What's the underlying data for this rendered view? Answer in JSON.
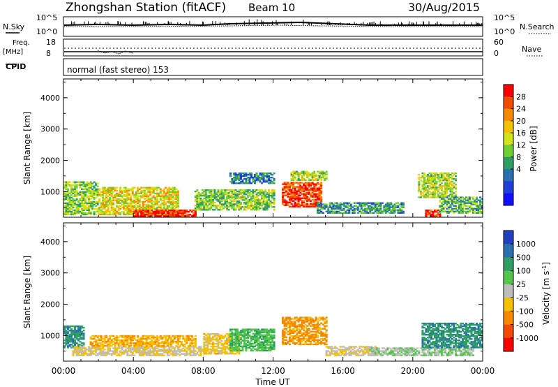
{
  "header": {
    "station": "Zhongshan Station (fitACF)",
    "beam": "Beam 10",
    "date": "30/Aug/2015"
  },
  "noise_panel": {
    "left_label": "N.Sky",
    "right_label": "N.Search",
    "left_ticks": [
      "10^5",
      "10^0"
    ],
    "right_ticks": [
      "10^5",
      "10^0"
    ]
  },
  "freq_panel": {
    "left_label_1": "Freq.",
    "left_label_2": "[MHz]",
    "right_label": "Nave",
    "left_ticks": [
      "18",
      "8"
    ],
    "right_ticks": [
      "60",
      "0"
    ],
    "cpid_label": "CPID"
  },
  "cpid_text": "normal (fast stereo) 153",
  "power_panel": {
    "ylabel": "Slant Range [km]",
    "yticks": [
      "4000",
      "3000",
      "2000",
      "1000"
    ],
    "cbar_label": "Power [dB]",
    "cbar_ticks": [
      "28",
      "24",
      "20",
      "16",
      "12",
      "8",
      "4"
    ],
    "cbar_colors": [
      "#ff0000",
      "#f04a00",
      "#f58a00",
      "#f5c000",
      "#cfe51a",
      "#6fcf33",
      "#2f9e63",
      "#2a6fb0",
      "#1f3fd6",
      "#1010ff"
    ]
  },
  "velocity_panel": {
    "ylabel": "Slant Range [km]",
    "yticks": [
      "4000",
      "3000",
      "2000",
      "1000"
    ],
    "cbar_label": "Velocity [m s",
    "cbar_label_sup": "-1",
    "cbar_label_end": "]",
    "cbar_ticks": [
      "1000",
      "500",
      "100",
      "25",
      "-25",
      "-100",
      "-500",
      "-1000"
    ],
    "cbar_colors": [
      "#1f3fbf",
      "#2a6fb0",
      "#2f9e63",
      "#53c64a",
      "#bdbdbd",
      "#f5c000",
      "#f58a00",
      "#f04a00",
      "#ff0000"
    ]
  },
  "xaxis": {
    "ticks": [
      "00:00",
      "04:00",
      "08:00",
      "12:00",
      "16:00",
      "20:00",
      "00:00"
    ],
    "label": "Time UT"
  },
  "chart_data": [
    {
      "type": "heatmap",
      "title": "Zhongshan Station (fitACF) Beam 10 30/Aug/2015",
      "xlabel": "Time UT",
      "ylabel": "Slant Range [km]",
      "xlim": [
        "00:00",
        "24:00"
      ],
      "ylim": [
        180,
        4600
      ],
      "zlabel": "Power [dB]",
      "zlim": [
        0,
        30
      ],
      "regions": [
        {
          "t": [
            0.0,
            2.0
          ],
          "r": [
            250,
            1300
          ],
          "value": 14
        },
        {
          "t": [
            2.0,
            6.5
          ],
          "r": [
            250,
            1150
          ],
          "value": 18
        },
        {
          "t": [
            4.0,
            7.5
          ],
          "r": [
            200,
            400
          ],
          "value": 28
        },
        {
          "t": [
            7.5,
            12.0
          ],
          "r": [
            400,
            1050
          ],
          "value": 14
        },
        {
          "t": [
            9.5,
            12.0
          ],
          "r": [
            1250,
            1600
          ],
          "value": 8
        },
        {
          "t": [
            12.5,
            14.7
          ],
          "r": [
            500,
            1300
          ],
          "value": 26
        },
        {
          "t": [
            13.0,
            15.0
          ],
          "r": [
            1350,
            1650
          ],
          "value": 16
        },
        {
          "t": [
            14.5,
            19.5
          ],
          "r": [
            300,
            650
          ],
          "value": 10
        },
        {
          "t": [
            20.3,
            22.5
          ],
          "r": [
            800,
            1600
          ],
          "value": 16
        },
        {
          "t": [
            20.7,
            21.6
          ],
          "r": [
            200,
            400
          ],
          "value": 28
        },
        {
          "t": [
            21.5,
            24.0
          ],
          "r": [
            300,
            800
          ],
          "value": 12
        }
      ]
    },
    {
      "type": "heatmap",
      "xlabel": "Time UT",
      "ylabel": "Slant Range [km]",
      "xlim": [
        "00:00",
        "24:00"
      ],
      "ylim": [
        180,
        4600
      ],
      "zlabel": "Velocity [m s-1]",
      "zlim": [
        -1000,
        1000
      ],
      "regions": [
        {
          "t": [
            0.0,
            1.2
          ],
          "r": [
            600,
            1300
          ],
          "value": 500
        },
        {
          "t": [
            0.5,
            8.0
          ],
          "r": [
            350,
            650
          ],
          "value": -100
        },
        {
          "t": [
            1.5,
            7.5
          ],
          "r": [
            650,
            1000
          ],
          "value": -300
        },
        {
          "t": [
            8.0,
            10.0
          ],
          "r": [
            400,
            1050
          ],
          "value": -200
        },
        {
          "t": [
            9.5,
            12.0
          ],
          "r": [
            500,
            1200
          ],
          "value": 300
        },
        {
          "t": [
            12.5,
            15.0
          ],
          "r": [
            700,
            1600
          ],
          "value": -400
        },
        {
          "t": [
            15.0,
            18.0
          ],
          "r": [
            350,
            650
          ],
          "value": -100
        },
        {
          "t": [
            17.5,
            23.5
          ],
          "r": [
            350,
            600
          ],
          "value": 100
        },
        {
          "t": [
            20.5,
            24.0
          ],
          "r": [
            600,
            1400
          ],
          "value": 500
        }
      ]
    }
  ]
}
